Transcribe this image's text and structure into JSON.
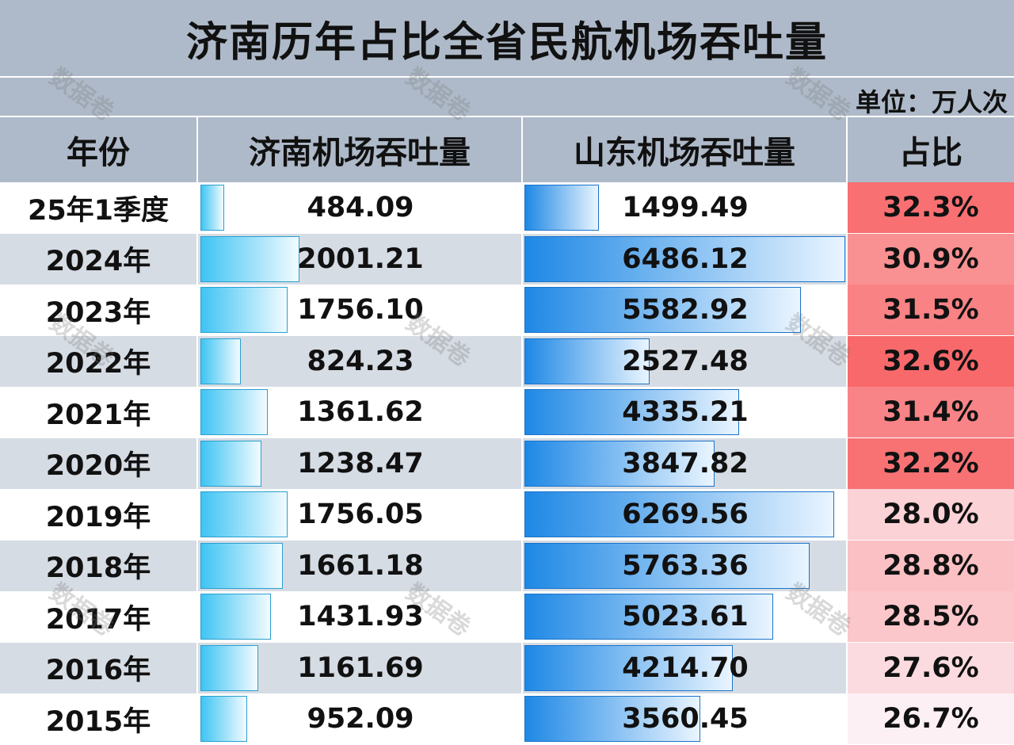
{
  "title": "济南历年占比全省民航机场吞吐量",
  "unit": "单位：万人次",
  "watermark": "数据卷",
  "headers": [
    "年份",
    "济南机场吞吐量",
    "山东机场吞吐量",
    "占比"
  ],
  "chart_data": {
    "type": "table",
    "title": "济南历年占比全省民航机场吞吐量",
    "unit": "单位：万人次",
    "columns": [
      "年份",
      "济南机场吞吐量",
      "山东机场吞吐量",
      "占比"
    ],
    "rows": [
      {
        "year": "25年1季度",
        "jinan": "484.09",
        "shandong": "1499.49",
        "ratio": "32.3%"
      },
      {
        "year": "2024年",
        "jinan": "2001.21",
        "shandong": "6486.12",
        "ratio": "30.9%"
      },
      {
        "year": "2023年",
        "jinan": "1756.10",
        "shandong": "5582.92",
        "ratio": "31.5%"
      },
      {
        "year": "2022年",
        "jinan": "824.23",
        "shandong": "2527.48",
        "ratio": "32.6%"
      },
      {
        "year": "2021年",
        "jinan": "1361.62",
        "shandong": "4335.21",
        "ratio": "31.4%"
      },
      {
        "year": "2020年",
        "jinan": "1238.47",
        "shandong": "3847.82",
        "ratio": "32.2%"
      },
      {
        "year": "2019年",
        "jinan": "1756.05",
        "shandong": "6269.56",
        "ratio": "28.0%"
      },
      {
        "year": "2018年",
        "jinan": "1661.18",
        "shandong": "5763.36",
        "ratio": "28.8%"
      },
      {
        "year": "2017年",
        "jinan": "1431.93",
        "shandong": "5023.61",
        "ratio": "28.5%"
      },
      {
        "year": "2016年",
        "jinan": "1161.69",
        "shandong": "4214.70",
        "ratio": "27.6%"
      },
      {
        "year": "2015年",
        "jinan": "952.09",
        "shandong": "3560.45",
        "ratio": "26.7%"
      }
    ]
  },
  "colors": {
    "header_bg": "#aebac9",
    "row_alt": "#d6dce4",
    "jinan_bar": "#3fc4f3",
    "shandong_bar": "#1e88e5",
    "ratio_high": "#f8696b",
    "ratio_low": "#fcfcff"
  }
}
